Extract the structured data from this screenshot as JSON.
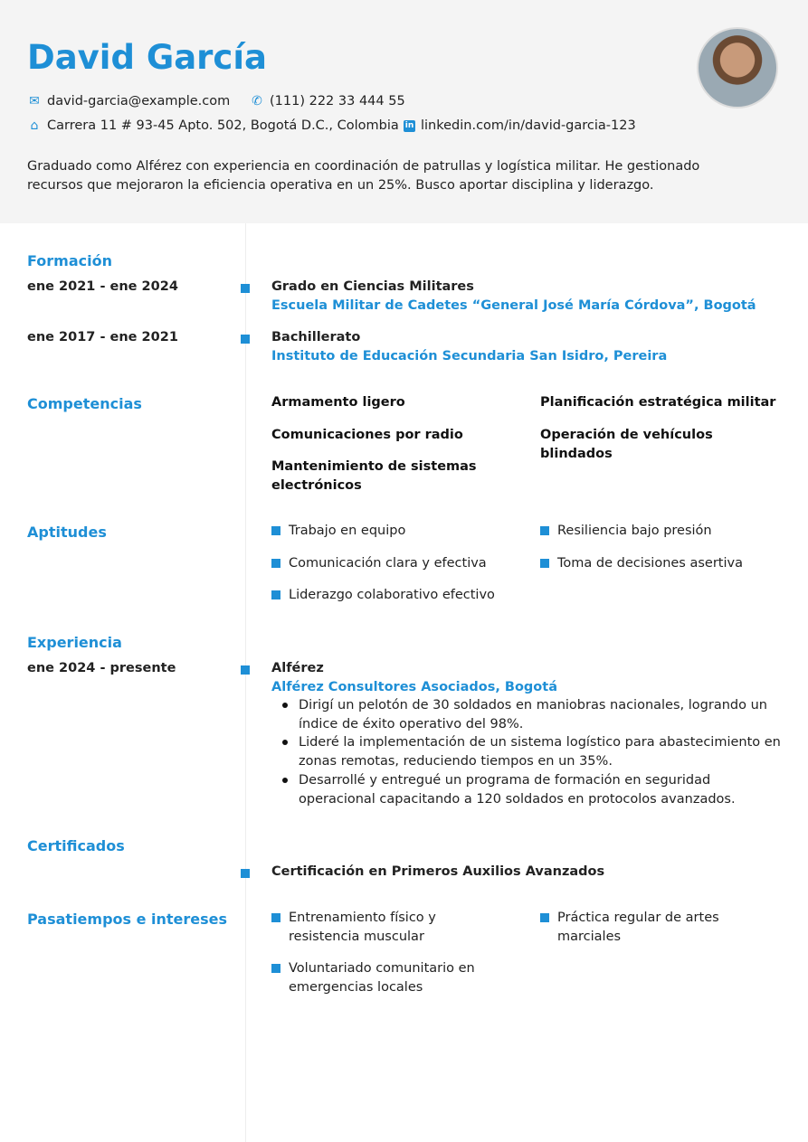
{
  "name": "David García",
  "contact": {
    "email": "david-garcia@example.com",
    "phone": "(111) 222 33 444 55",
    "address": "Carrera 11 # 93-45 Apto. 502, Bogotá D.C., Colombia",
    "linkedin": "linkedin.com/in/david-garcia-123"
  },
  "summary": "Graduado como Alférez con experiencia en coordinación de patrullas y logística militar. He gestionado recursos que mejoraron la eficiencia operativa en un 25%. Busco aportar disciplina y liderazgo.",
  "sections": {
    "education": "Formación",
    "skills": "Competencias",
    "aptitudes": "Aptitudes",
    "experience": "Experiencia",
    "certificates": "Certificados",
    "hobbies": "Pasatiempos e intereses"
  },
  "education": [
    {
      "dates": "ene 2021 - ene 2024",
      "degree": "Grado en Ciencias Militares",
      "school": "Escuela Militar de Cadetes “General José María Córdova”, Bogotá"
    },
    {
      "dates": "ene 2017 - ene 2021",
      "degree": "Bachillerato",
      "school": "Instituto de Educación Secundaria San Isidro, Pereira"
    }
  ],
  "skills": [
    "Armamento ligero",
    "Planificación estratégica militar",
    "Comunicaciones por radio",
    "Operación de vehículos blindados",
    "Mantenimiento de sistemas electrónicos"
  ],
  "aptitudes": [
    "Trabajo en equipo",
    "Resiliencia bajo presión",
    "Comunicación clara y efectiva",
    "Toma de decisiones asertiva",
    "Liderazgo colaborativo efectivo"
  ],
  "experience": {
    "dates": "ene 2024 - presente",
    "role": "Alférez",
    "company": "Alférez Consultores Asociados, Bogotá",
    "bullets": [
      "Dirigí un pelotón de 30 soldados en maniobras nacionales, logrando un índice de éxito operativo del 98%.",
      "Lideré la implementación de un sistema logístico para abastecimiento en zonas remotas, reduciendo tiempos en un 35%.",
      "Desarrollé y entregué un programa de formación en seguridad operacional capacitando a 120 soldados en protocolos avanzados."
    ]
  },
  "certificates": [
    "Certificación en Primeros Auxilios Avanzados"
  ],
  "hobbies": [
    "Entrenamiento físico y resistencia muscular",
    "Práctica regular de artes marciales",
    "Voluntariado comunitario en emergencias locales"
  ],
  "colors": {
    "accent": "#1e8fd6",
    "header_bg": "#f4f4f4"
  }
}
